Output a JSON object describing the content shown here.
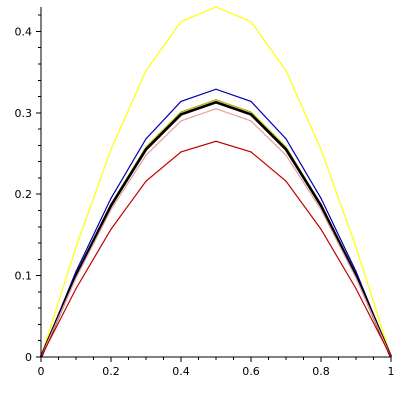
{
  "chart_data": {
    "type": "line",
    "title": "",
    "xlabel": "",
    "ylabel": "",
    "xlim": [
      0,
      1
    ],
    "ylim": [
      0,
      0.43
    ],
    "grid": false,
    "legend": "none",
    "x": [
      0,
      0.1,
      0.2,
      0.3,
      0.4,
      0.5,
      0.6,
      0.7,
      0.8,
      0.9,
      1
    ],
    "x_ticks": [
      0,
      0.2,
      0.4,
      0.6,
      0.8,
      1
    ],
    "x_tick_labels": [
      "0",
      "0.2",
      "0.4",
      "0.6",
      "0.8",
      "1"
    ],
    "y_ticks": [
      0,
      0.1,
      0.2,
      0.3,
      0.4
    ],
    "y_tick_labels": [
      "0",
      "0.1",
      "0.2",
      "0.3",
      "0.4"
    ],
    "series": [
      {
        "color": "#ffff00",
        "width": 1.2,
        "values": [
          0,
          0.135,
          0.255,
          0.352,
          0.412,
          0.43,
          0.412,
          0.352,
          0.255,
          0.135,
          0
        ]
      },
      {
        "color": "#0000b0",
        "width": 1.2,
        "values": [
          0,
          0.105,
          0.195,
          0.268,
          0.314,
          0.329,
          0.314,
          0.268,
          0.195,
          0.105,
          0
        ]
      },
      {
        "color": "#b0b000",
        "width": 1.2,
        "values": [
          0,
          0.1,
          0.188,
          0.258,
          0.301,
          0.316,
          0.301,
          0.258,
          0.188,
          0.1,
          0
        ]
      },
      {
        "color": "#000000",
        "width": 2.6,
        "values": [
          0,
          0.1,
          0.186,
          0.255,
          0.298,
          0.313,
          0.298,
          0.255,
          0.186,
          0.1,
          0
        ]
      },
      {
        "color": "#e6a0a0",
        "width": 1.2,
        "values": [
          0,
          0.097,
          0.181,
          0.248,
          0.29,
          0.305,
          0.29,
          0.248,
          0.181,
          0.097,
          0
        ]
      },
      {
        "color": "#c00000",
        "width": 1.2,
        "values": [
          0,
          0.084,
          0.157,
          0.216,
          0.252,
          0.265,
          0.252,
          0.216,
          0.157,
          0.084,
          0
        ]
      }
    ]
  }
}
